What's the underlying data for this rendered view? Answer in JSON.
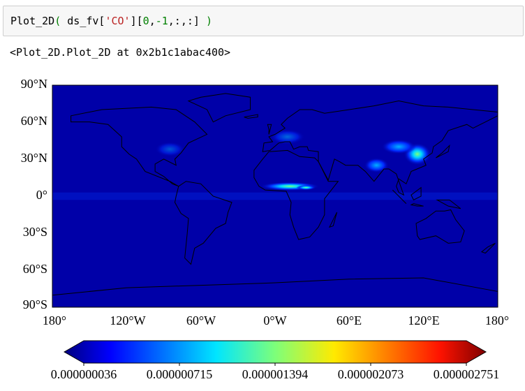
{
  "code_cell": {
    "tokens": [
      "Plot_2D",
      "(",
      " ds_fv[",
      "'CO'",
      "][",
      "0",
      ",",
      "-1",
      ",:,:] ",
      ")"
    ]
  },
  "output_text": "<Plot_2D.Plot_2D at 0x2b1c1abac400>",
  "figure": {
    "y_axis_labels": [
      "90°N",
      "60°N",
      "30°N",
      "0°",
      "30°S",
      "60°S",
      "90°S"
    ],
    "x_axis_labels": [
      "180°",
      "120°W",
      "60°W",
      "0°W",
      "60°E",
      "120°E",
      "180°"
    ],
    "colorbar_labels": [
      "0.000000036",
      "0.000000715",
      "0.000001394",
      "0.000002073",
      "0.000002751"
    ]
  }
}
